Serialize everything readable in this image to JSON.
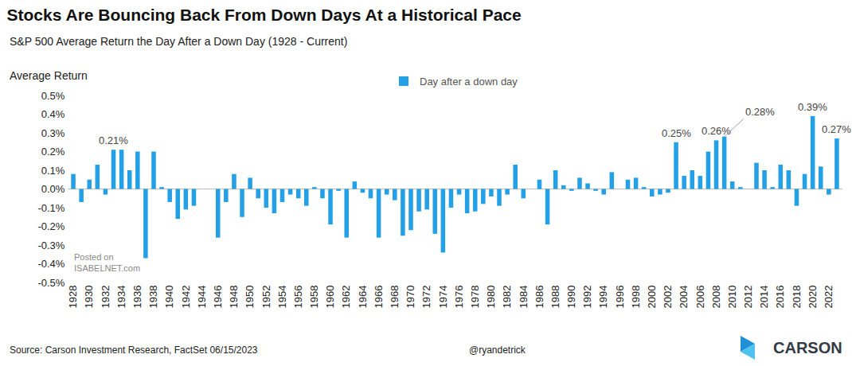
{
  "chart_data": {
    "type": "bar",
    "title": "Stocks Are Bouncing Back From Down Days At a Historical Pace",
    "subtitle": "S&P 500 Average Return the Day After a Down Day (1928 - Current)",
    "y_label": "Average Return",
    "source": "Source: Carson Investment Research, FactSet 06/15/2023",
    "credit": "@ryandetrick",
    "brand": "CARSON",
    "watermark": [
      "Posted on",
      "ISABELNET.com"
    ],
    "legend": "top",
    "grid": false,
    "categories": [
      "1928",
      null,
      "1930",
      null,
      "1932",
      null,
      "1934",
      null,
      "1936",
      null,
      "1938",
      null,
      "1940",
      null,
      "1942",
      null,
      "1944",
      null,
      "1946",
      null,
      "1948",
      null,
      "1950",
      null,
      "1952",
      null,
      "1954",
      null,
      "1956",
      null,
      "1958",
      null,
      "1960",
      null,
      "1962",
      null,
      "1964",
      null,
      "1966",
      null,
      "1968",
      null,
      "1970",
      null,
      "1972",
      null,
      "1974",
      null,
      "1976",
      null,
      "1978",
      null,
      "1980",
      null,
      "1982",
      null,
      "1984",
      null,
      "1986",
      null,
      "1988",
      null,
      "1990",
      null,
      "1992",
      null,
      "1994",
      null,
      "1996",
      null,
      "1998",
      null,
      "2000",
      null,
      "2002",
      null,
      "2004",
      null,
      "2006",
      null,
      "2008",
      null,
      "2010",
      null,
      "2012",
      null,
      "2014",
      null,
      "2016",
      null,
      "2018",
      null,
      "2020",
      null,
      "2022",
      null
    ],
    "series": [
      {
        "name": "Day after a down day",
        "color": "#23a0e6",
        "values": [
          0.08,
          -0.07,
          0.05,
          0.13,
          -0.03,
          0.21,
          0.21,
          0.1,
          0.2,
          -0.37,
          0.2,
          0.01,
          -0.07,
          -0.16,
          -0.11,
          -0.09,
          0.0,
          0.0,
          -0.26,
          -0.07,
          0.08,
          -0.15,
          0.06,
          -0.05,
          -0.1,
          -0.13,
          -0.07,
          -0.03,
          -0.05,
          -0.09,
          0.01,
          -0.05,
          -0.19,
          -0.01,
          -0.26,
          0.04,
          -0.02,
          -0.05,
          -0.26,
          -0.03,
          -0.06,
          -0.25,
          -0.22,
          -0.12,
          -0.11,
          -0.24,
          -0.34,
          -0.1,
          -0.03,
          -0.13,
          -0.12,
          -0.08,
          -0.04,
          -0.09,
          -0.03,
          0.13,
          -0.05,
          0.0,
          0.05,
          -0.19,
          0.1,
          0.02,
          -0.01,
          0.06,
          0.03,
          -0.01,
          -0.03,
          0.09,
          0.0,
          0.05,
          0.06,
          0.01,
          -0.04,
          -0.03,
          -0.02,
          0.25,
          0.07,
          0.1,
          0.07,
          0.2,
          0.26,
          0.28,
          0.04,
          0.01,
          0.0,
          0.14,
          0.1,
          0.01,
          0.13,
          0.1,
          -0.09,
          0.08,
          0.39,
          0.12,
          -0.03,
          0.27
        ],
        "value_labels": [
          null,
          null,
          null,
          null,
          null,
          "0.21%",
          null,
          null,
          null,
          null,
          null,
          null,
          null,
          null,
          null,
          null,
          null,
          null,
          null,
          null,
          null,
          null,
          null,
          null,
          null,
          null,
          null,
          null,
          null,
          null,
          null,
          null,
          null,
          null,
          null,
          null,
          null,
          null,
          null,
          null,
          null,
          null,
          null,
          null,
          null,
          null,
          null,
          null,
          null,
          null,
          null,
          null,
          null,
          null,
          null,
          null,
          null,
          null,
          null,
          null,
          null,
          null,
          null,
          null,
          null,
          null,
          null,
          null,
          null,
          null,
          null,
          null,
          null,
          null,
          null,
          "0.25%",
          null,
          null,
          null,
          null,
          "0.26%",
          "0.28%",
          null,
          null,
          null,
          null,
          null,
          null,
          null,
          null,
          null,
          null,
          "0.39%",
          null,
          null,
          "0.27%"
        ]
      }
    ],
    "ylim": [
      -0.5,
      0.5
    ],
    "yticks": [
      {
        "value": -0.5,
        "label": "-0.5%"
      },
      {
        "value": -0.4,
        "label": "-0.4%"
      },
      {
        "value": -0.3,
        "label": "-0.3%"
      },
      {
        "value": -0.2,
        "label": "-0.2%"
      },
      {
        "value": -0.1,
        "label": "-0.1%"
      },
      {
        "value": 0,
        "label": "0.0%"
      },
      {
        "value": 0.1,
        "label": "0.1%"
      },
      {
        "value": 0.2,
        "label": "0.2%"
      },
      {
        "value": 0.3,
        "label": "0.3%"
      },
      {
        "value": 0.4,
        "label": "0.4%"
      },
      {
        "value": 0.5,
        "label": "0.5%"
      }
    ]
  }
}
